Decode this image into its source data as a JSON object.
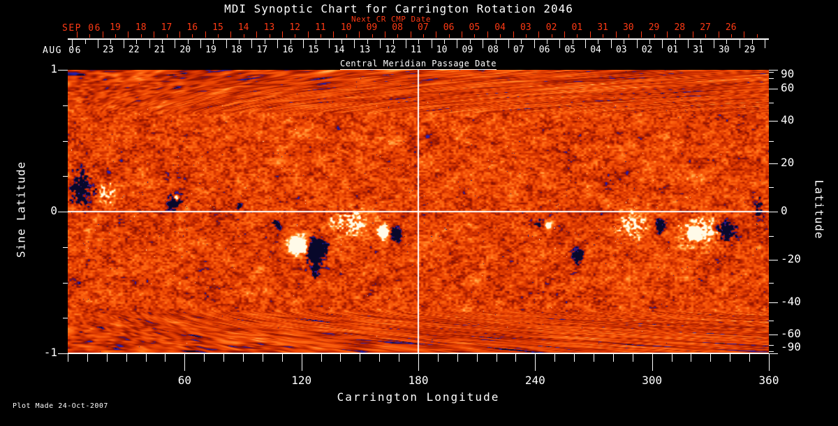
{
  "colors": {
    "background": "#000000",
    "text": "#ffffff",
    "next_cr": "#ff3a14",
    "axis": "#ffffff"
  },
  "chart_data": {
    "type": "heatmap",
    "title": "MDI Synoptic Chart for Carrington Rotation 2046",
    "footnote": "Plot Made 24-Oct-2007",
    "x_axis": {
      "label": "Carrington Longitude",
      "range": [
        0,
        360
      ],
      "major_ticks": [
        60,
        120,
        180,
        240,
        300,
        360
      ],
      "minor_step": 10
    },
    "y_axis_left": {
      "label": "Sine Latitude",
      "range": [
        -1,
        1
      ],
      "minor_step": 0.25,
      "ticks": [
        {
          "label": "1",
          "value": 1
        },
        {
          "label": "0",
          "value": 0
        },
        {
          "label": "-1",
          "value": -1
        }
      ]
    },
    "y_axis_right": {
      "label": "Latitude",
      "major_ticks": [
        90,
        60,
        40,
        20,
        0,
        -20,
        -40,
        -60,
        -90
      ],
      "minor_step": 10
    },
    "next_cr_axis": {
      "title": "Next CR CMP Date",
      "month_label": "SEP 06",
      "day_labels": [
        "19",
        "18",
        "17",
        "16",
        "15",
        "14",
        "13",
        "12",
        "11",
        "10",
        "09",
        "08",
        "07",
        "06",
        "05",
        "04",
        "03",
        "02",
        "01",
        "31",
        "30",
        "29",
        "28",
        "27",
        "26"
      ]
    },
    "cmp_axis": {
      "title": "Central Meridian Passage Date",
      "month_label": "AUG 06",
      "day_labels": [
        "23",
        "22",
        "21",
        "20",
        "19",
        "18",
        "17",
        "16",
        "15",
        "14",
        "13",
        "12",
        "11",
        "10",
        "09",
        "08",
        "07",
        "06",
        "05",
        "04",
        "03",
        "02",
        "01",
        "31",
        "30",
        "29"
      ]
    },
    "crosshair": {
      "longitude": 180,
      "latitude": 0,
      "color": "#ffffff"
    },
    "magnetogram": {
      "seed": 7,
      "palette": [
        {
          "v": 0.0,
          "c": "#08082a"
        },
        {
          "v": 0.05,
          "c": "#2222b8"
        },
        {
          "v": 0.095,
          "c": "#3c1484"
        },
        {
          "v": 0.14,
          "c": "#8a1200"
        },
        {
          "v": 0.32,
          "c": "#c82c00"
        },
        {
          "v": 0.52,
          "c": "#f04a04"
        },
        {
          "v": 0.7,
          "c": "#ff6a14"
        },
        {
          "v": 0.82,
          "c": "#ff9232"
        },
        {
          "v": 0.9,
          "c": "#ffb65c"
        },
        {
          "v": 0.955,
          "c": "#ffdc9a"
        },
        {
          "v": 1.0,
          "c": "#fffae8"
        }
      ],
      "noise": {
        "base": 0.46,
        "amp": 0.52,
        "fine_scale": 2.3,
        "mid_scale": 6.5,
        "coarse_scale": 19,
        "h_stretch": 1.45,
        "pole_stretch": 3.4,
        "pole_start": 0.7,
        "pole_darken": 0.05,
        "pole_contrast": 0.25
      },
      "specks": {
        "dark_threshold": 0.988,
        "dark_belt_bonus": 0.022,
        "bright_threshold": 0.008,
        "bright_belt_bonus": 0.008,
        "belt_sigma": 95
      },
      "active_regions": [
        {
          "lon": 7.5,
          "sl": 0.16,
          "rlon": 8.0,
          "rsl": 0.16,
          "p": -1,
          "s": 0.75,
          "cl": 0.8
        },
        {
          "lon": 19.5,
          "sl": 0.13,
          "rlon": 6.5,
          "rsl": 0.1,
          "p": 1,
          "s": 0.5,
          "cl": 0.85
        },
        {
          "lon": 55.0,
          "sl": 0.07,
          "rlon": 4.8,
          "rsl": 0.075,
          "p": -1,
          "s": 0.7,
          "cl": 0.6
        },
        {
          "lon": 55.5,
          "sl": 0.1,
          "rlon": 1.6,
          "rsl": 0.022,
          "p": 1,
          "s": 0.95,
          "cl": 0.15
        },
        {
          "lon": 88.0,
          "sl": 0.04,
          "rlon": 2.3,
          "rsl": 0.03,
          "p": -1,
          "s": 0.45,
          "cl": 0.7
        },
        {
          "lon": 107.0,
          "sl": -0.085,
          "rlon": 3.2,
          "rsl": 0.05,
          "p": -1,
          "s": 0.55,
          "cl": 0.7
        },
        {
          "lon": 118.6,
          "sl": -0.235,
          "rlon": 7.2,
          "rsl": 0.095,
          "p": 1,
          "s": 1.05,
          "cl": 0.22
        },
        {
          "lon": 127.5,
          "sl": -0.26,
          "rlon": 5.0,
          "rsl": 0.085,
          "p": -1,
          "s": 1.1,
          "cl": 0.25
        },
        {
          "lon": 127.0,
          "sl": -0.28,
          "rlon": 8.6,
          "rsl": 0.13,
          "p": -1,
          "s": 0.5,
          "cl": 0.85
        },
        {
          "lon": 127.3,
          "sl": -0.42,
          "rlon": 2.3,
          "rsl": 0.07,
          "p": -1,
          "s": 0.55,
          "cl": 0.65
        },
        {
          "lon": 144.5,
          "sl": -0.075,
          "rlon": 12.5,
          "rsl": 0.115,
          "p": 1,
          "s": 0.55,
          "cl": 0.85
        },
        {
          "lon": 162.0,
          "sl": -0.145,
          "rlon": 4.3,
          "rsl": 0.06,
          "p": 1,
          "s": 0.9,
          "cl": 0.3
        },
        {
          "lon": 168.5,
          "sl": -0.155,
          "rlon": 3.9,
          "rsl": 0.065,
          "p": -1,
          "s": 0.9,
          "cl": 0.4
        },
        {
          "lon": 241.0,
          "sl": -0.075,
          "rlon": 3.6,
          "rsl": 0.05,
          "p": -1,
          "s": 0.5,
          "cl": 0.8
        },
        {
          "lon": 247.0,
          "sl": -0.095,
          "rlon": 2.9,
          "rsl": 0.042,
          "p": 1,
          "s": 0.7,
          "cl": 0.45
        },
        {
          "lon": 262.0,
          "sl": -0.31,
          "rlon": 3.6,
          "rsl": 0.06,
          "p": -1,
          "s": 0.85,
          "cl": 0.5
        },
        {
          "lon": 290.0,
          "sl": -0.095,
          "rlon": 10.0,
          "rsl": 0.11,
          "p": 1,
          "s": 0.5,
          "cl": 0.88
        },
        {
          "lon": 304.0,
          "sl": -0.095,
          "rlon": 3.6,
          "rsl": 0.06,
          "p": -1,
          "s": 0.75,
          "cl": 0.55
        },
        {
          "lon": 325.0,
          "sl": -0.135,
          "rlon": 14.3,
          "rsl": 0.13,
          "p": 1,
          "s": 0.55,
          "cl": 0.82
        },
        {
          "lon": 322.0,
          "sl": -0.16,
          "rlon": 4.3,
          "rsl": 0.045,
          "p": 1,
          "s": 0.95,
          "cl": 0.3
        },
        {
          "lon": 338.0,
          "sl": -0.135,
          "rlon": 6.5,
          "rsl": 0.09,
          "p": -1,
          "s": 0.9,
          "cl": 0.55
        },
        {
          "lon": 354.5,
          "sl": 0.02,
          "rlon": 4.3,
          "rsl": 0.1,
          "p": -1,
          "s": 0.5,
          "cl": 0.85
        }
      ]
    }
  }
}
